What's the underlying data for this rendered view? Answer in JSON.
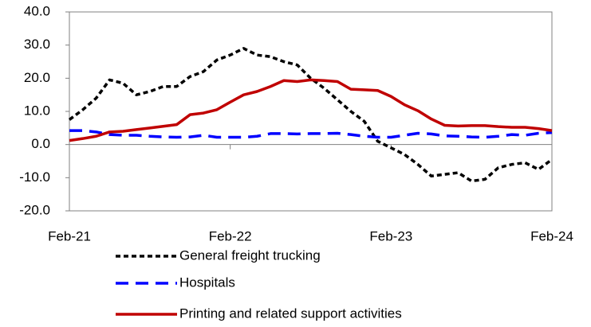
{
  "chart_data": {
    "type": "line",
    "categories": [
      "Feb-21",
      null,
      null,
      null,
      null,
      null,
      null,
      null,
      null,
      null,
      null,
      null,
      "Feb-22",
      null,
      null,
      null,
      null,
      null,
      null,
      null,
      null,
      null,
      null,
      null,
      "Feb-23",
      null,
      null,
      null,
      null,
      null,
      null,
      null,
      null,
      null,
      null,
      null,
      "Feb-24"
    ],
    "series": [
      {
        "name": "General freight trucking",
        "color": "#000000",
        "style": "dotted",
        "values": [
          7.5,
          10.5,
          14,
          19.5,
          18.5,
          15,
          16,
          17.5,
          17.5,
          20.5,
          22,
          25.5,
          27,
          29,
          27,
          26.5,
          25,
          24,
          20,
          17,
          13.5,
          10,
          7,
          1,
          -1,
          -3,
          -6,
          -9.5,
          -9,
          -8.5,
          -11,
          -10.5,
          -7,
          -6,
          -5.5,
          -7.5,
          -4.5
        ]
      },
      {
        "name": "Hospitals",
        "color": "#0000ff",
        "style": "dashed",
        "values": [
          4.2,
          4.2,
          3.8,
          3,
          2.8,
          2.8,
          2.5,
          2.3,
          2.2,
          2.3,
          2.8,
          2.2,
          2.2,
          2.2,
          2.5,
          3.3,
          3.3,
          3.2,
          3.3,
          3.3,
          3.4,
          3,
          2.5,
          2.2,
          2.2,
          2.8,
          3.4,
          3.2,
          2.6,
          2.5,
          2.3,
          2.2,
          2.5,
          3,
          2.8,
          3.4,
          3.6
        ]
      },
      {
        "name": "Printing and related support activities",
        "color": "#c00000",
        "style": "solid",
        "values": [
          1.2,
          1.8,
          2.5,
          3.8,
          4,
          4.5,
          5,
          5.5,
          6,
          9,
          9.5,
          10.5,
          12.8,
          15,
          16,
          17.5,
          19.3,
          19,
          19.5,
          19.3,
          19,
          16.7,
          16.5,
          16.3,
          14.5,
          12,
          10.2,
          7.7,
          5.8,
          5.6,
          5.7,
          5.7,
          5.4,
          5.2,
          5.2,
          4.8,
          4.2
        ]
      }
    ],
    "ylim": [
      -20,
      40
    ],
    "yticks": [
      {
        "value": -20,
        "label": "-20.0"
      },
      {
        "value": -10,
        "label": "-10.0"
      },
      {
        "value": 0,
        "label": "0.0"
      },
      {
        "value": 10,
        "label": "10.0"
      },
      {
        "value": 20,
        "label": "20.0"
      },
      {
        "value": 30,
        "label": "30.0"
      },
      {
        "value": 40,
        "label": "40.0"
      }
    ],
    "grid": false,
    "legend": "bottom"
  }
}
